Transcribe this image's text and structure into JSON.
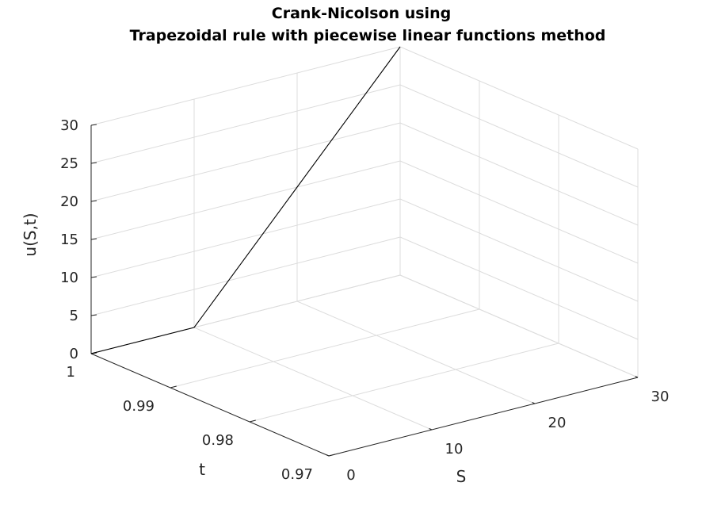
{
  "chart_data": {
    "type": "line",
    "dimension": "3d",
    "title": [
      "Crank-Nicolson using",
      "Trapezoidal rule with piecewise linear functions method"
    ],
    "xlabel": "S",
    "ylabel": "t",
    "zlabel": "u(S,t)",
    "xlim": [
      0,
      30
    ],
    "ylim": [
      0.97,
      1
    ],
    "zlim": [
      0,
      30
    ],
    "xticks": [
      0,
      10,
      20,
      30
    ],
    "xtick_labels": [
      "0",
      "10",
      "20",
      "30"
    ],
    "yticks": [
      0.97,
      0.98,
      0.99,
      1
    ],
    "ytick_labels": [
      "0.97",
      "0.98",
      "0.99",
      "1"
    ],
    "zticks": [
      0,
      5,
      10,
      15,
      20,
      25,
      30
    ],
    "ztick_labels": [
      "0",
      "5",
      "10",
      "15",
      "20",
      "25",
      "30"
    ],
    "grid": true,
    "series": [
      {
        "color": "#000000",
        "x": [
          0,
          10,
          20,
          30
        ],
        "y": [
          1,
          1,
          1,
          1
        ],
        "z": [
          0,
          0,
          15,
          30
        ]
      }
    ]
  }
}
